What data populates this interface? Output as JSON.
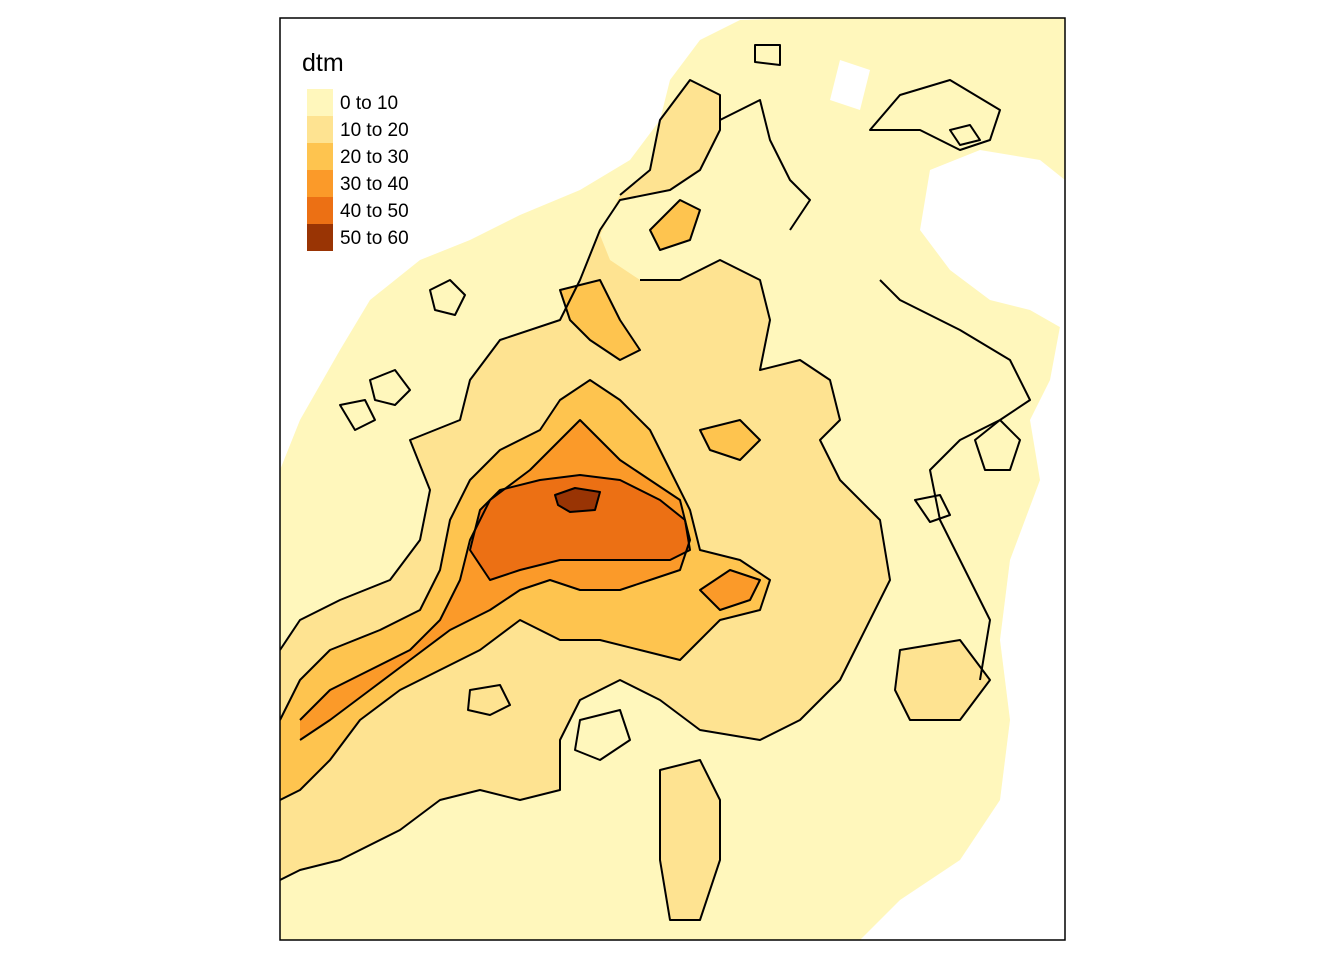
{
  "legend": {
    "title": "dtm",
    "classes": [
      {
        "label": "0 to 10",
        "color": "#FFF7BC"
      },
      {
        "label": "10 to 20",
        "color": "#FEE391"
      },
      {
        "label": "20 to 30",
        "color": "#FEC44F"
      },
      {
        "label": "30 to 40",
        "color": "#FB9A29"
      },
      {
        "label": "40 to 50",
        "color": "#EC7014"
      },
      {
        "label": "50 to 60",
        "color": "#993404"
      }
    ]
  },
  "map": {
    "water_color": "#ffffff",
    "contour_color": "#000000"
  }
}
